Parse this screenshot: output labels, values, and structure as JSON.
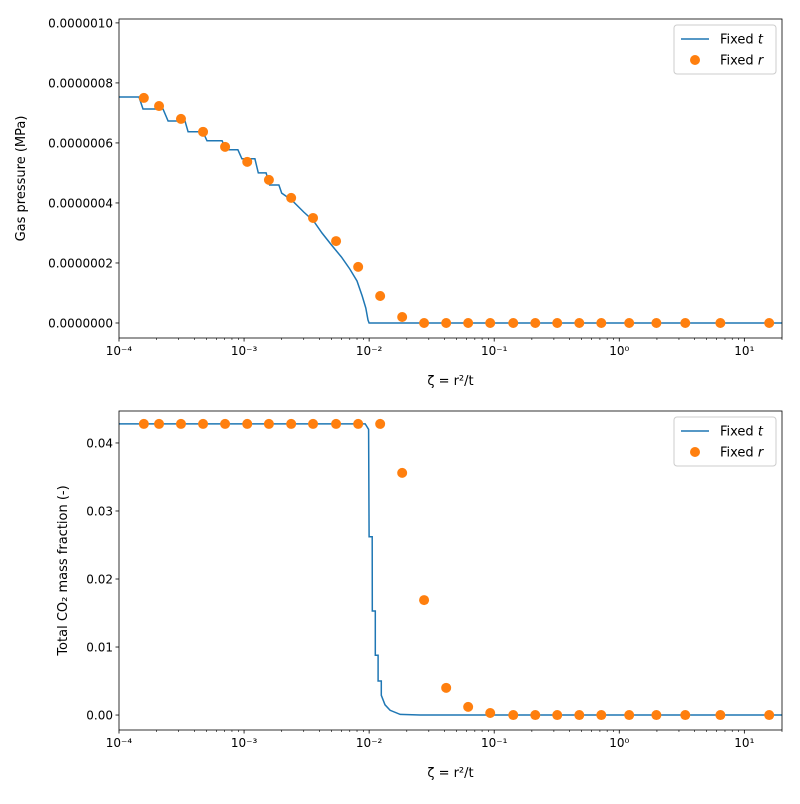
{
  "colors": {
    "line": "#1f77b4",
    "points": "#ff7f0e",
    "axis": "#000000"
  },
  "chart_data": [
    {
      "type": "line",
      "xscale": "log",
      "xlim": [
        0.0001,
        20
      ],
      "ylim": [
        -5e-08,
        1.013e-06
      ],
      "xlabel": "ζ = r²/t",
      "ylabel": "Gas pressure (MPa)",
      "x_tick_labels": [
        "10⁻⁴",
        "10⁻³",
        "10⁻²",
        "10⁻¹",
        "10⁰",
        "10¹"
      ],
      "x_ticks": [
        0.0001,
        0.001,
        0.01,
        0.1,
        1,
        10
      ],
      "y_ticks": [
        0,
        2e-07,
        4e-07,
        6e-07,
        8e-07,
        1e-06
      ],
      "y_tick_labels": [
        "0.0000000",
        "0.0000002",
        "0.0000004",
        "0.0000006",
        "0.0000008",
        "0.0000010"
      ],
      "grid": false,
      "legend_position": "top-right",
      "series": [
        {
          "name": "Fixed t",
          "style": "line",
          "x": [
            0.0001,
            0.0001445,
            0.0001556,
            0.000225,
            0.000247,
            0.000337,
            0.000357,
            0.000469,
            0.000505,
            0.000667,
            0.000718,
            0.000893,
            0.00096,
            0.00122,
            0.0013,
            0.0015,
            0.0016,
            0.0019,
            0.002,
            0.0024,
            0.003,
            0.0036,
            0.0042,
            0.005,
            0.006,
            0.007,
            0.008,
            0.0088,
            0.0094,
            0.0098,
            0.01,
            20
          ],
          "y": [
            7.53e-07,
            7.53e-07,
            7.13e-07,
            7.13e-07,
            6.73e-07,
            6.73e-07,
            6.37e-07,
            6.37e-07,
            6.07e-07,
            6.07e-07,
            5.77e-07,
            5.77e-07,
            5.47e-07,
            5.47e-07,
            5e-07,
            5e-07,
            4.6e-07,
            4.6e-07,
            4.33e-07,
            4.1e-07,
            3.7e-07,
            3.4e-07,
            3e-07,
            2.6e-07,
            2.2e-07,
            1.8e-07,
            1.4e-07,
            9e-08,
            5e-08,
            1e-08,
            0,
            0
          ]
        },
        {
          "name": "Fixed r",
          "style": "points",
          "x": [
            0.000158,
            0.000209,
            0.000313,
            0.00047,
            0.000705,
            0.00106,
            0.00158,
            0.00238,
            0.00356,
            0.00544,
            0.00817,
            0.01225,
            0.01837,
            0.0275,
            0.0413,
            0.0619,
            0.0929,
            0.142,
            0.213,
            0.319,
            0.479,
            0.718,
            1.2,
            1.98,
            3.37,
            6.43,
            15.8
          ],
          "y": [
            7.5e-07,
            7.23e-07,
            6.8e-07,
            6.37e-07,
            5.87e-07,
            5.37e-07,
            4.77e-07,
            4.17e-07,
            3.5e-07,
            2.73e-07,
            1.87e-07,
            9e-08,
            2e-08,
            0,
            0,
            0,
            0,
            0,
            0,
            0,
            0,
            0,
            0,
            0,
            0,
            0,
            0
          ]
        }
      ]
    },
    {
      "type": "line",
      "xscale": "log",
      "xlim": [
        0.0001,
        20
      ],
      "ylim": [
        -0.0022,
        0.0447
      ],
      "xlabel": "ζ = r²/t",
      "ylabel": "Total CO₂ mass fraction (-)",
      "x_tick_labels": [
        "10⁻⁴",
        "10⁻³",
        "10⁻²",
        "10⁻¹",
        "10⁰",
        "10¹"
      ],
      "x_ticks": [
        0.0001,
        0.001,
        0.01,
        0.1,
        1,
        10
      ],
      "y_ticks": [
        0,
        0.01,
        0.02,
        0.03,
        0.04
      ],
      "y_tick_labels": [
        "0.00",
        "0.01",
        "0.02",
        "0.03",
        "0.04"
      ],
      "grid": false,
      "legend_position": "top-right",
      "series": [
        {
          "name": "Fixed t",
          "style": "line",
          "x": [
            0.0001,
            0.0093,
            0.0099,
            0.01,
            0.01057,
            0.0106,
            0.0112,
            0.0112,
            0.0118,
            0.0118,
            0.0125,
            0.0125,
            0.0134,
            0.0147,
            0.0177,
            0.0255,
            20
          ],
          "y": [
            0.0428,
            0.0428,
            0.042,
            0.0262,
            0.0262,
            0.0153,
            0.0153,
            0.0088,
            0.0088,
            0.005,
            0.005,
            0.0029,
            0.0015,
            0.0007,
            0.0001,
            0,
            0
          ]
        },
        {
          "name": "Fixed r",
          "style": "points",
          "x": [
            0.000158,
            0.000209,
            0.000313,
            0.00047,
            0.000705,
            0.00106,
            0.00158,
            0.00238,
            0.00356,
            0.00544,
            0.00817,
            0.01225,
            0.01837,
            0.0275,
            0.0413,
            0.0619,
            0.0929,
            0.142,
            0.213,
            0.319,
            0.479,
            0.718,
            1.2,
            1.98,
            3.37,
            6.43,
            15.8
          ],
          "y": [
            0.0428,
            0.0428,
            0.0428,
            0.0428,
            0.0428,
            0.0428,
            0.0428,
            0.0428,
            0.0428,
            0.0428,
            0.0428,
            0.0428,
            0.0356,
            0.0169,
            0.004,
            0.0012,
            0.0003,
            0,
            0,
            0,
            0,
            0,
            0,
            0,
            0,
            0,
            0
          ]
        }
      ]
    }
  ]
}
